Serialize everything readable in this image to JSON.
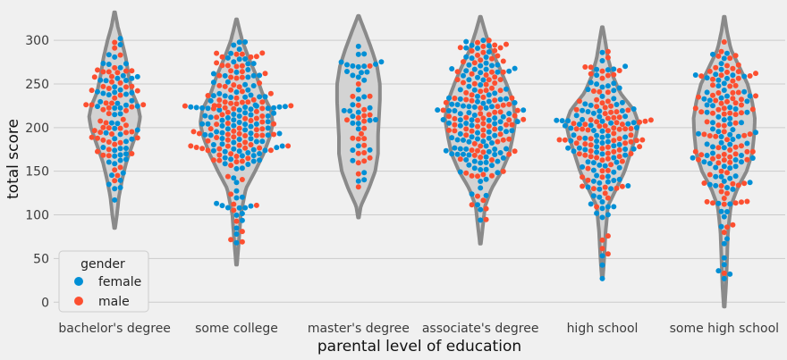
{
  "chart_data": {
    "type": "violin",
    "categories": [
      "bachelor's degree",
      "some college",
      "master's degree",
      "associate's degree",
      "high school",
      "some high school"
    ],
    "xlabel": "parental level of education",
    "ylabel": "total score",
    "ylim": [
      -12,
      340
    ],
    "yticks": [
      0,
      50,
      100,
      150,
      200,
      250,
      300
    ],
    "grid": true,
    "legend": {
      "title": "gender",
      "placement": "lower-left",
      "entries": [
        {
          "name": "female",
          "color": "#008fd5"
        },
        {
          "name": "male",
          "color": "#fc4f30"
        }
      ]
    },
    "violin_color": "#d3d3d3",
    "violin_edge_color": "#8a8a8a",
    "violins": [
      {
        "category": "bachelor's degree",
        "count": 118,
        "min": 85,
        "max": 332,
        "profile": [
          [
            85,
            0.01
          ],
          [
            100,
            0.05
          ],
          [
            120,
            0.09
          ],
          [
            140,
            0.16
          ],
          [
            160,
            0.25
          ],
          [
            180,
            0.38
          ],
          [
            200,
            0.51
          ],
          [
            212,
            0.55
          ],
          [
            225,
            0.5
          ],
          [
            240,
            0.38
          ],
          [
            260,
            0.3
          ],
          [
            280,
            0.24
          ],
          [
            300,
            0.15
          ],
          [
            315,
            0.07
          ],
          [
            332,
            0.01
          ]
        ]
      },
      {
        "category": "some college",
        "count": 226,
        "min": 43,
        "max": 324,
        "profile": [
          [
            43,
            0.01
          ],
          [
            70,
            0.05
          ],
          [
            100,
            0.09
          ],
          [
            130,
            0.2
          ],
          [
            150,
            0.4
          ],
          [
            170,
            0.58
          ],
          [
            190,
            0.72
          ],
          [
            205,
            0.78
          ],
          [
            220,
            0.74
          ],
          [
            240,
            0.55
          ],
          [
            260,
            0.42
          ],
          [
            280,
            0.26
          ],
          [
            300,
            0.12
          ],
          [
            315,
            0.05
          ],
          [
            324,
            0.01
          ]
        ]
      },
      {
        "category": "master's degree",
        "count": 59,
        "min": 97,
        "max": 328,
        "profile": [
          [
            97,
            0.01
          ],
          [
            110,
            0.05
          ],
          [
            130,
            0.22
          ],
          [
            150,
            0.36
          ],
          [
            170,
            0.42
          ],
          [
            190,
            0.42
          ],
          [
            210,
            0.44
          ],
          [
            230,
            0.46
          ],
          [
            250,
            0.46
          ],
          [
            270,
            0.4
          ],
          [
            290,
            0.28
          ],
          [
            310,
            0.14
          ],
          [
            328,
            0.01
          ]
        ]
      },
      {
        "category": "associate's degree",
        "count": 222,
        "min": 67,
        "max": 327,
        "profile": [
          [
            67,
            0.01
          ],
          [
            90,
            0.06
          ],
          [
            110,
            0.1
          ],
          [
            130,
            0.24
          ],
          [
            150,
            0.46
          ],
          [
            170,
            0.62
          ],
          [
            190,
            0.7
          ],
          [
            210,
            0.76
          ],
          [
            230,
            0.7
          ],
          [
            250,
            0.56
          ],
          [
            270,
            0.4
          ],
          [
            290,
            0.22
          ],
          [
            310,
            0.1
          ],
          [
            327,
            0.01
          ]
        ]
      },
      {
        "category": "high school",
        "count": 196,
        "min": 27,
        "max": 315,
        "profile": [
          [
            27,
            0.01
          ],
          [
            50,
            0.04
          ],
          [
            80,
            0.07
          ],
          [
            110,
            0.12
          ],
          [
            130,
            0.3
          ],
          [
            150,
            0.48
          ],
          [
            170,
            0.6
          ],
          [
            190,
            0.72
          ],
          [
            205,
            0.78
          ],
          [
            220,
            0.68
          ],
          [
            240,
            0.38
          ],
          [
            260,
            0.22
          ],
          [
            280,
            0.12
          ],
          [
            300,
            0.06
          ],
          [
            315,
            0.01
          ]
        ]
      },
      {
        "category": "some high school",
        "count": 179,
        "min": -5,
        "max": 327,
        "profile": [
          [
            -5,
            0.01
          ],
          [
            20,
            0.04
          ],
          [
            50,
            0.06
          ],
          [
            80,
            0.08
          ],
          [
            110,
            0.14
          ],
          [
            130,
            0.28
          ],
          [
            150,
            0.48
          ],
          [
            170,
            0.6
          ],
          [
            190,
            0.64
          ],
          [
            210,
            0.66
          ],
          [
            230,
            0.6
          ],
          [
            250,
            0.5
          ],
          [
            270,
            0.32
          ],
          [
            290,
            0.14
          ],
          [
            310,
            0.06
          ],
          [
            327,
            0.01
          ]
        ]
      }
    ],
    "swarm": [
      {
        "category": "bachelor's degree",
        "female_fraction": 0.53,
        "min": 117,
        "max": 302,
        "mode": 210,
        "n": 118
      },
      {
        "category": "some college",
        "female_fraction": 0.52,
        "min": 68,
        "max": 298,
        "mode": 205,
        "n": 226
      },
      {
        "category": "master's degree",
        "female_fraction": 0.61,
        "min": 132,
        "max": 293,
        "mode": 225,
        "n": 59
      },
      {
        "category": "associate's degree",
        "female_fraction": 0.52,
        "min": 94,
        "max": 300,
        "mode": 210,
        "n": 222
      },
      {
        "category": "high school",
        "female_fraction": 0.48,
        "min": 27,
        "max": 287,
        "mode": 200,
        "n": 196
      },
      {
        "category": "some high school",
        "female_fraction": 0.5,
        "min": 27,
        "max": 298,
        "mode": 200,
        "n": 179
      }
    ]
  }
}
